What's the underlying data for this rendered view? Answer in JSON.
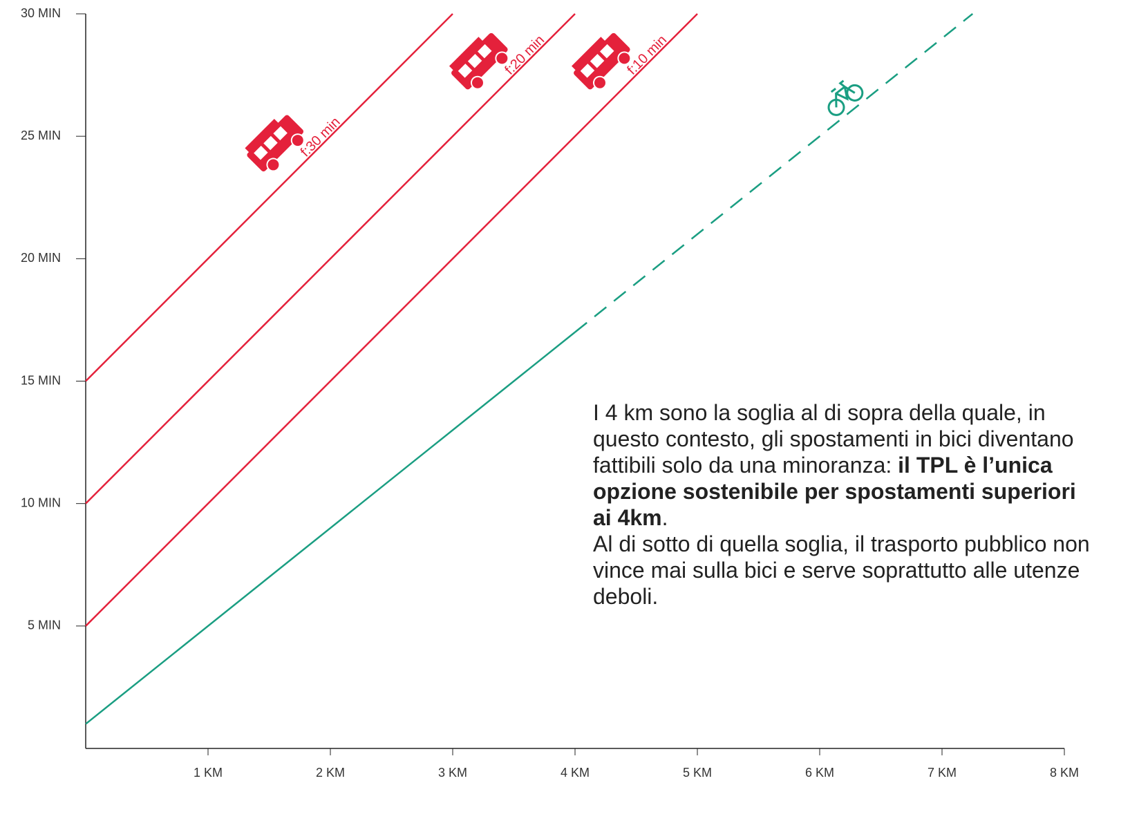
{
  "chart_data": {
    "type": "line",
    "xlim": [
      0,
      8
    ],
    "ylim": [
      0,
      30
    ],
    "xticks": [
      {
        "value": 1,
        "label": "1 KM"
      },
      {
        "value": 2,
        "label": "2 KM"
      },
      {
        "value": 3,
        "label": "3 KM"
      },
      {
        "value": 4,
        "label": "4 KM"
      },
      {
        "value": 5,
        "label": "5 KM"
      },
      {
        "value": 6,
        "label": "6 KM"
      },
      {
        "value": 7,
        "label": "7 KM"
      },
      {
        "value": 8,
        "label": "8 KM"
      }
    ],
    "yticks": [
      {
        "value": 5,
        "label": "5 MIN"
      },
      {
        "value": 10,
        "label": "10 MIN"
      },
      {
        "value": 15,
        "label": "15 MIN"
      },
      {
        "value": 20,
        "label": "20 MIN"
      },
      {
        "value": 25,
        "label": "25 MIN"
      },
      {
        "value": 30,
        "label": "30 MIN"
      }
    ],
    "series": [
      {
        "name": "f:30 min",
        "color": "#e4213b",
        "style": "solid",
        "icon": "bus",
        "x": [
          0,
          3
        ],
        "values": [
          15,
          30
        ]
      },
      {
        "name": "f:20 min",
        "color": "#e4213b",
        "style": "solid",
        "icon": "bus",
        "x": [
          0,
          4
        ],
        "values": [
          10,
          30
        ]
      },
      {
        "name": "f:10 min",
        "color": "#e4213b",
        "style": "solid",
        "icon": "bus",
        "x": [
          0,
          5
        ],
        "values": [
          5,
          30
        ]
      },
      {
        "color": "#1a9e82",
        "style": "solid",
        "x": [
          0,
          4
        ],
        "values": [
          1,
          17
        ]
      },
      {
        "color": "#1a9e82",
        "style": "dashed",
        "icon": "bike",
        "x": [
          4,
          7.25
        ],
        "values": [
          17,
          30
        ]
      }
    ],
    "annotation": [
      [
        {
          "text": "I 4 km sono la soglia al di sopra della quale, in questo contesto, gli spostamenti in bici diventano fattibili solo da una minoranza: ",
          "bold": false
        },
        {
          "text": "il TPL è l’unica opzione sostenibile per spostamenti superiori ai 4km",
          "bold": true
        },
        {
          "text": ".",
          "bold": false
        }
      ],
      [
        {
          "text": "Al di sotto di quella soglia, il trasporto pubblico non vince mai sulla bici e serve soprattutto alle utenze deboli.",
          "bold": false
        }
      ]
    ]
  }
}
